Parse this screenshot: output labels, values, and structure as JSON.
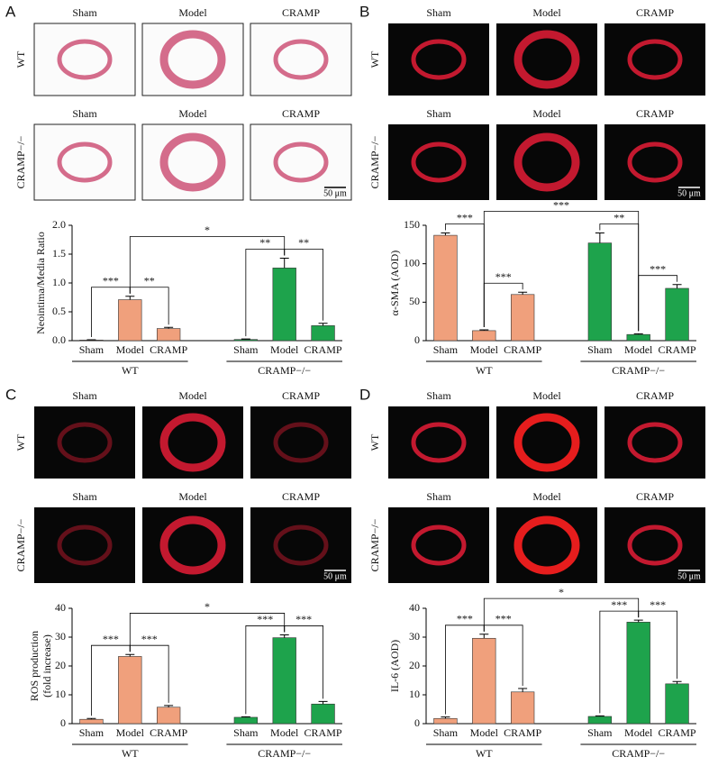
{
  "panels": [
    {
      "letter": "A",
      "image_columns": [
        "Sham",
        "Model",
        "CRAMP"
      ],
      "image_rows": [
        "WT",
        "CRAMP−/−"
      ],
      "scale_bar": "50 μm"
    },
    {
      "letter": "B",
      "image_columns": [
        "Sham",
        "Model",
        "CRAMP"
      ],
      "image_rows": [
        "WT",
        "CRAMP−/−"
      ],
      "scale_bar": "50 μm"
    },
    {
      "letter": "C",
      "image_columns": [
        "Sham",
        "Model",
        "CRAMP"
      ],
      "image_rows": [
        "WT",
        "CRAMP−/−"
      ],
      "scale_bar": "50 μm"
    },
    {
      "letter": "D",
      "image_columns": [
        "Sham",
        "Model",
        "CRAMP"
      ],
      "image_rows": [
        "WT",
        "CRAMP−/−"
      ],
      "scale_bar": "50 μm"
    }
  ],
  "chart_data": [
    {
      "type": "bar",
      "ylabel": [
        "Neointima/Media Ratio"
      ],
      "categories": [
        "Sham",
        "Model",
        "CRAMP"
      ],
      "series": [
        {
          "name": "WT",
          "color": "#f0a07c",
          "values": [
            0.01,
            0.71,
            0.21
          ],
          "errors": [
            0.005,
            0.06,
            0.02
          ]
        },
        {
          "name": "CRAMP−/−",
          "color": "#1ea34c",
          "values": [
            0.02,
            1.26,
            0.26
          ],
          "errors": [
            0.01,
            0.17,
            0.04
          ]
        }
      ],
      "ylim": [
        0,
        2
      ],
      "yticks": [
        {
          "value": 0,
          "label": "0.0"
        },
        {
          "value": 0.5,
          "label": "0.5"
        },
        {
          "value": 1,
          "label": "1.0"
        },
        {
          "value": 1.5,
          "label": "1.5"
        },
        {
          "value": 2,
          "label": "2.0"
        }
      ],
      "annotations": [
        "***",
        "**",
        "*",
        "**",
        "**"
      ]
    },
    {
      "type": "bar",
      "ylabel": [
        "α-SMA (AOD)"
      ],
      "categories": [
        "Sham",
        "Model",
        "CRAMP"
      ],
      "series": [
        {
          "name": "WT",
          "color": "#f0a07c",
          "values": [
            137,
            13,
            60
          ],
          "errors": [
            3,
            1,
            3
          ]
        },
        {
          "name": "CRAMP−/−",
          "color": "#1ea34c",
          "values": [
            127,
            8,
            68
          ],
          "errors": [
            13,
            1,
            5
          ]
        }
      ],
      "ylim": [
        0,
        150
      ],
      "yticks": [
        0,
        50,
        100,
        150
      ],
      "annotations": [
        "***",
        "***",
        "***",
        "**",
        "***"
      ]
    },
    {
      "type": "bar",
      "ylabel": [
        "ROS production",
        "(fold increase)"
      ],
      "categories": [
        "Sham",
        "Model",
        "CRAMP"
      ],
      "series": [
        {
          "name": "WT",
          "color": "#f0a07c",
          "values": [
            1.5,
            23.3,
            5.7
          ],
          "errors": [
            0.3,
            0.7,
            0.6
          ]
        },
        {
          "name": "CRAMP−/−",
          "color": "#1ea34c",
          "values": [
            2.2,
            29.8,
            6.8
          ],
          "errors": [
            0.2,
            1.0,
            0.9
          ]
        }
      ],
      "ylim": [
        0,
        40
      ],
      "yticks": [
        0,
        10,
        20,
        30,
        40
      ],
      "annotations": [
        "***",
        "***",
        "*",
        "***",
        "***"
      ]
    },
    {
      "type": "bar",
      "ylabel": [
        "IL-6 (AOD)"
      ],
      "categories": [
        "Sham",
        "Model",
        "CRAMP"
      ],
      "series": [
        {
          "name": "WT",
          "color": "#f0a07c",
          "values": [
            1.8,
            29.6,
            11
          ],
          "errors": [
            0.5,
            1.4,
            1.2
          ]
        },
        {
          "name": "CRAMP−/−",
          "color": "#1ea34c",
          "values": [
            2.5,
            35.2,
            13.8
          ],
          "errors": [
            0.2,
            0.7,
            0.8
          ]
        }
      ],
      "ylim": [
        0,
        40
      ],
      "yticks": [
        0,
        10,
        20,
        30,
        40
      ],
      "annotations": [
        "***",
        "***",
        "*",
        "***",
        "***"
      ]
    }
  ]
}
